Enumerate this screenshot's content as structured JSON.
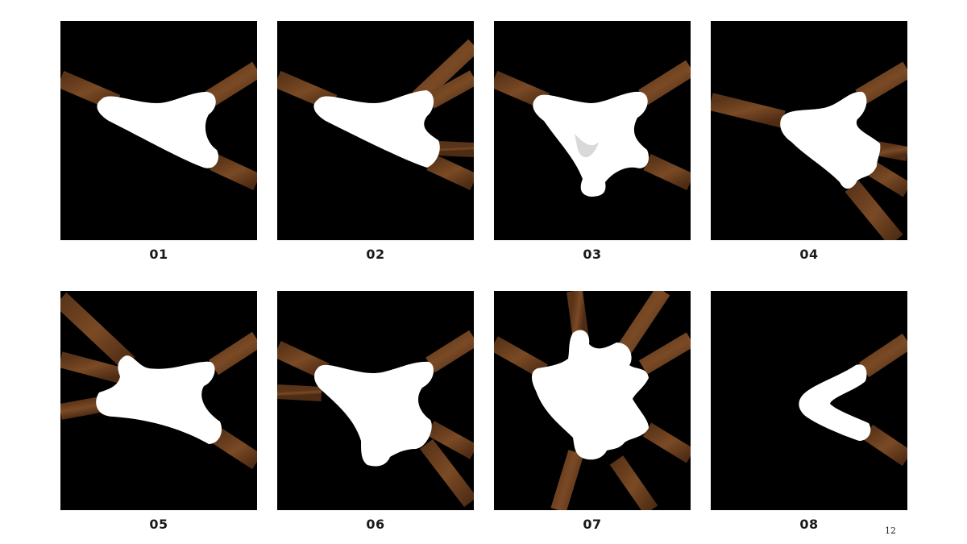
{
  "figures": [
    {
      "label": "01"
    },
    {
      "label": "02"
    },
    {
      "label": "03"
    },
    {
      "label": "04"
    },
    {
      "label": "05"
    },
    {
      "label": "06"
    },
    {
      "label": "07"
    },
    {
      "label": "08"
    }
  ],
  "page_number": "12",
  "colors": {
    "background": "#000000",
    "wood": "#6b3f1f",
    "joint": "#ffffff"
  }
}
